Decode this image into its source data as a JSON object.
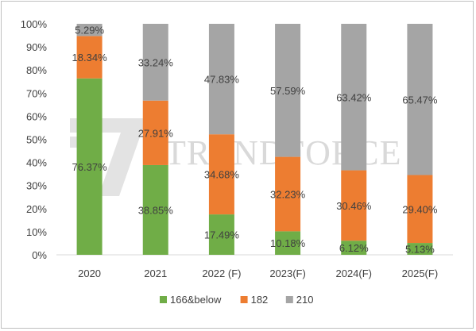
{
  "chart_data": {
    "type": "bar",
    "stacked": true,
    "categories": [
      "2020",
      "2021",
      "2022 (F)",
      "2023(F)",
      "2024(F)",
      "2025(F)"
    ],
    "series": [
      {
        "name": "166&below",
        "color": "#70ad47",
        "values": [
          76.37,
          38.85,
          17.49,
          10.18,
          6.12,
          5.13
        ],
        "labels": [
          "76.37%",
          "38.85%",
          "17.49%",
          "10.18%",
          "6.12%",
          "5.13%"
        ]
      },
      {
        "name": "182",
        "color": "#ed7d31",
        "values": [
          18.34,
          27.91,
          34.68,
          32.23,
          30.46,
          29.4
        ],
        "labels": [
          "18.34%",
          "27.91%",
          "34.68%",
          "32.23%",
          "30.46%",
          "29.40%"
        ]
      },
      {
        "name": "210",
        "color": "#a5a5a5",
        "values": [
          5.29,
          33.24,
          47.83,
          57.59,
          63.42,
          65.47
        ],
        "labels": [
          "5.29%",
          "33.24%",
          "47.83%",
          "57.59%",
          "63.42%",
          "65.47%"
        ]
      }
    ],
    "yticks": [
      "0%",
      "10%",
      "20%",
      "30%",
      "40%",
      "50%",
      "60%",
      "70%",
      "80%",
      "90%",
      "100%"
    ],
    "ylim": [
      0,
      100
    ],
    "grid": false,
    "legend_position": "bottom"
  },
  "watermark": {
    "text": "TRENDFORCE",
    "color": "#d9d9d9"
  }
}
